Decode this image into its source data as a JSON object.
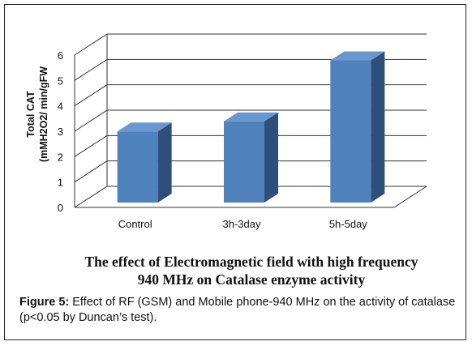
{
  "chart_data": {
    "type": "bar",
    "style": "3d-column",
    "categories": [
      "Control",
      "3h-3day",
      "5h-5day"
    ],
    "values": [
      2.8,
      3.2,
      5.6
    ],
    "ylabel_line1": "Total CAT",
    "ylabel_line2": "(mMH2O2/ min/gFW",
    "ylim": [
      0,
      6
    ],
    "yticks": [
      "0",
      "1",
      "2",
      "3",
      "4",
      "5",
      "6"
    ],
    "grid": true,
    "legend": "none",
    "colors": {
      "bar_front": "#4f81bd",
      "bar_side": "#2e4f7a",
      "bar_top": "#6b97cf",
      "grid": "#333333"
    },
    "title_line1": "The effect of Electromagnetic field with high frequency",
    "title_line2": "940 MHz on Catalase enzyme activity"
  },
  "caption": {
    "label": "Figure 5:",
    "text": " Effect of RF (GSM) and Mobile phone-940 MHz on the activity of catalase (p<0.05 by Duncan’s test)."
  }
}
